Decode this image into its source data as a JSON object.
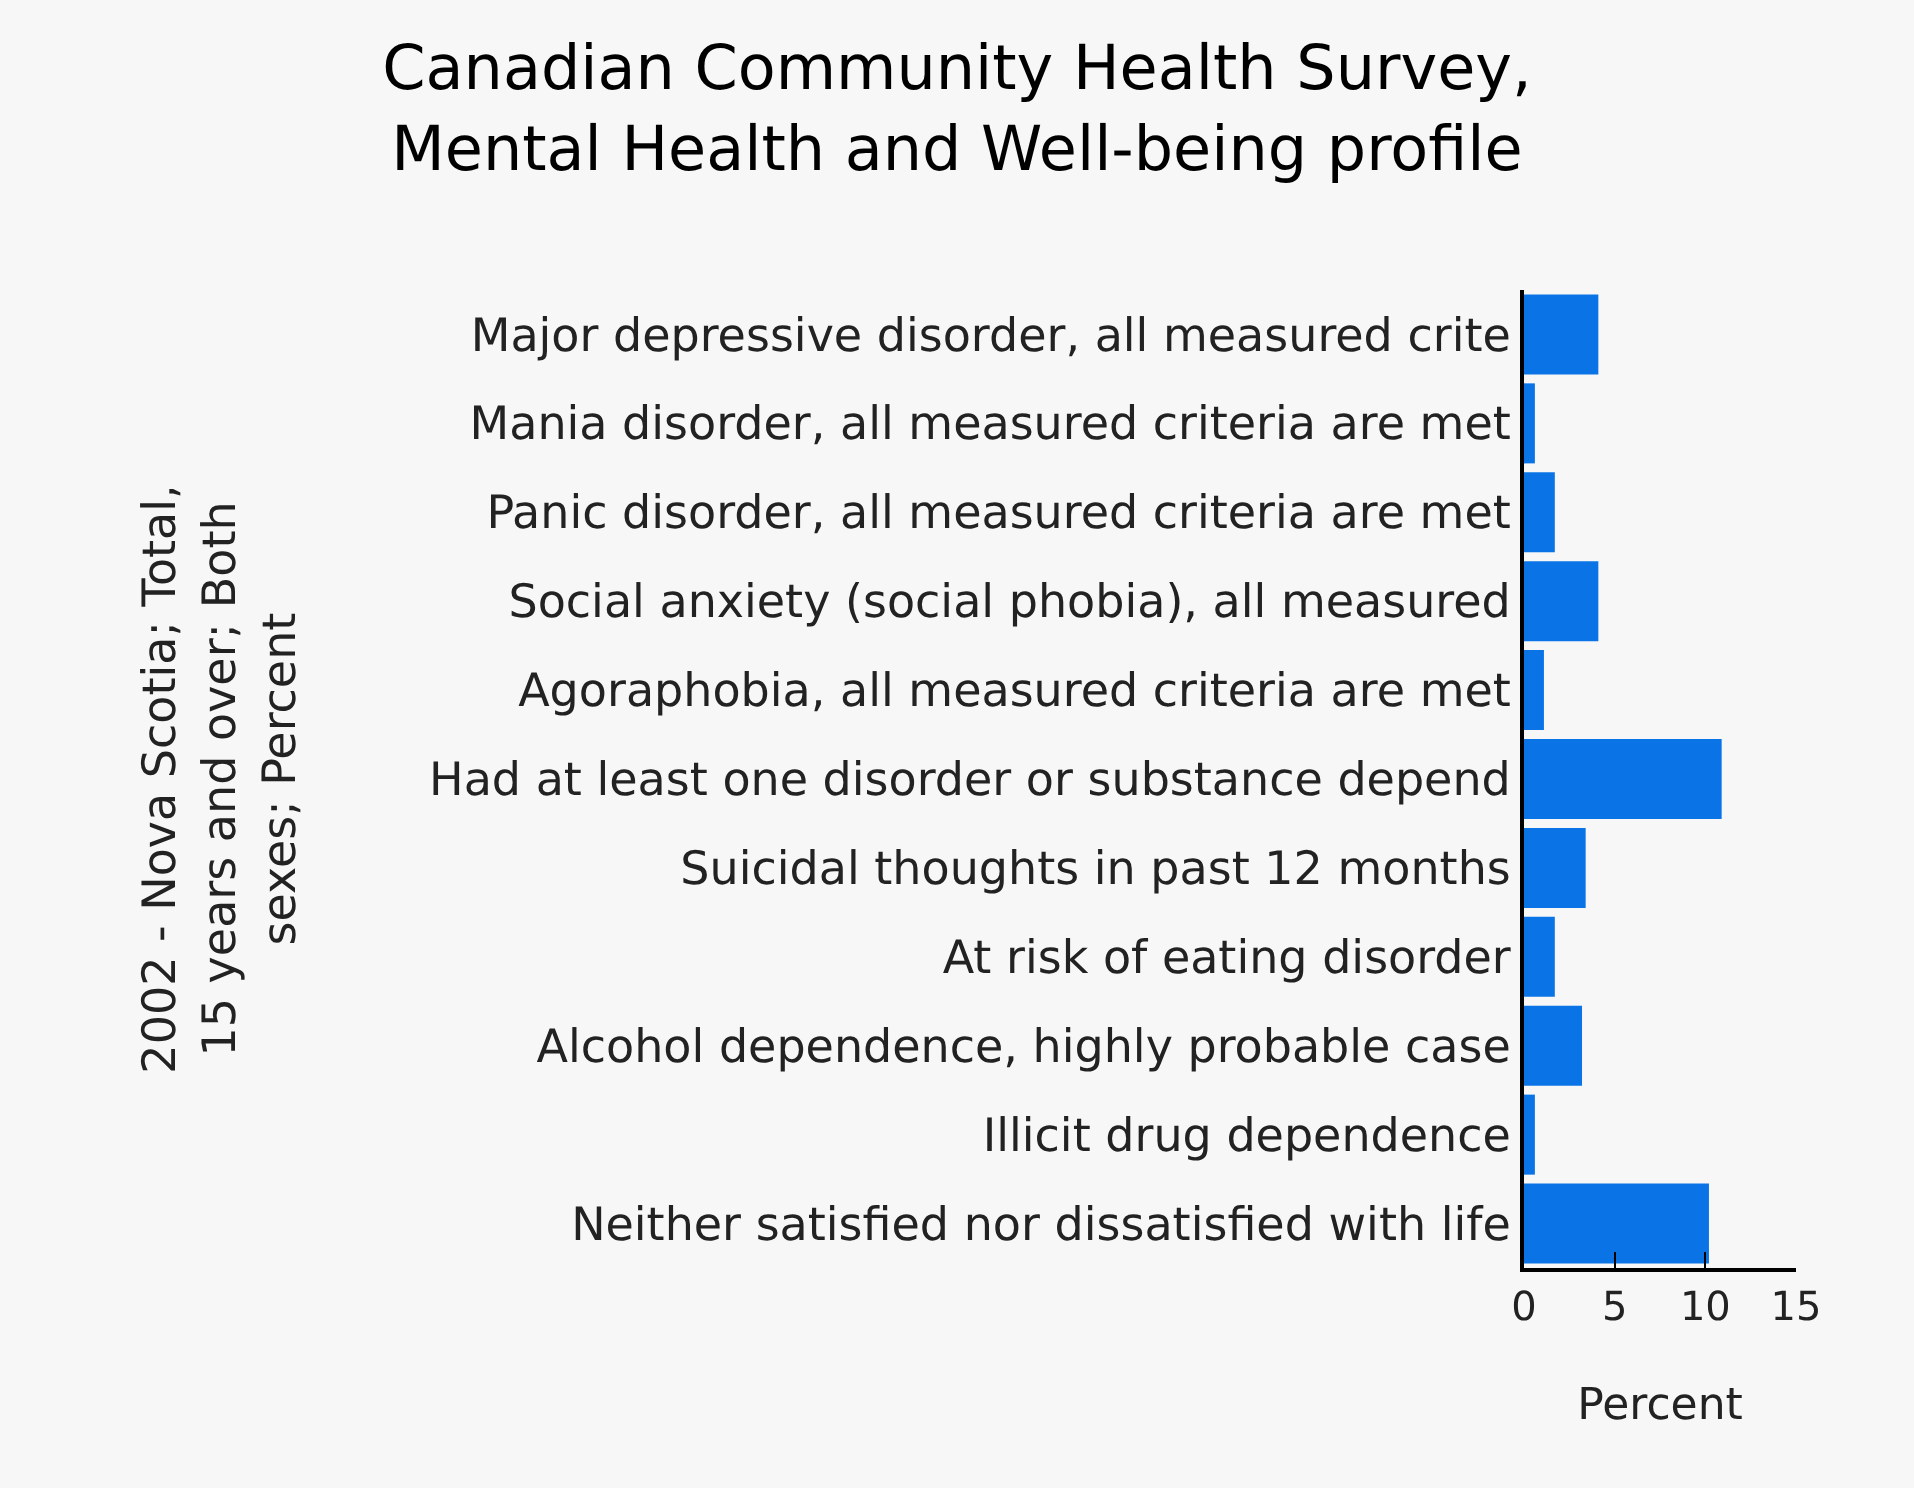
{
  "chart_data": {
    "type": "bar",
    "orientation": "horizontal",
    "title": "Canadian Community Health Survey,\nMental Health and Well-being profile",
    "xlabel": "Percent",
    "ylabel": "2002 - Nova Scotia; Total,\n15 years and over; Both\nsexes; Percent",
    "categories": [
      "Major depressive disorder, all measured crite",
      "Mania disorder, all measured criteria are met",
      "Panic disorder, all measured criteria are met",
      "Social anxiety (social phobia), all measured",
      "Agoraphobia, all measured criteria are met",
      "Had at least one disorder or substance depend",
      "Suicidal thoughts in past 12 months",
      "At risk of eating disorder",
      "Alcohol dependence, highly probable case",
      "Illicit drug dependence",
      "Neither satisfied nor dissatisfied with life"
    ],
    "values": [
      4.1,
      0.6,
      1.7,
      4.1,
      1.1,
      10.9,
      3.4,
      1.7,
      3.2,
      0.6,
      10.2
    ],
    "color": "#0a74e6",
    "xlim": [
      0,
      15
    ],
    "xticks": [
      0,
      5,
      10,
      15
    ],
    "grid": false,
    "legend": false
  }
}
